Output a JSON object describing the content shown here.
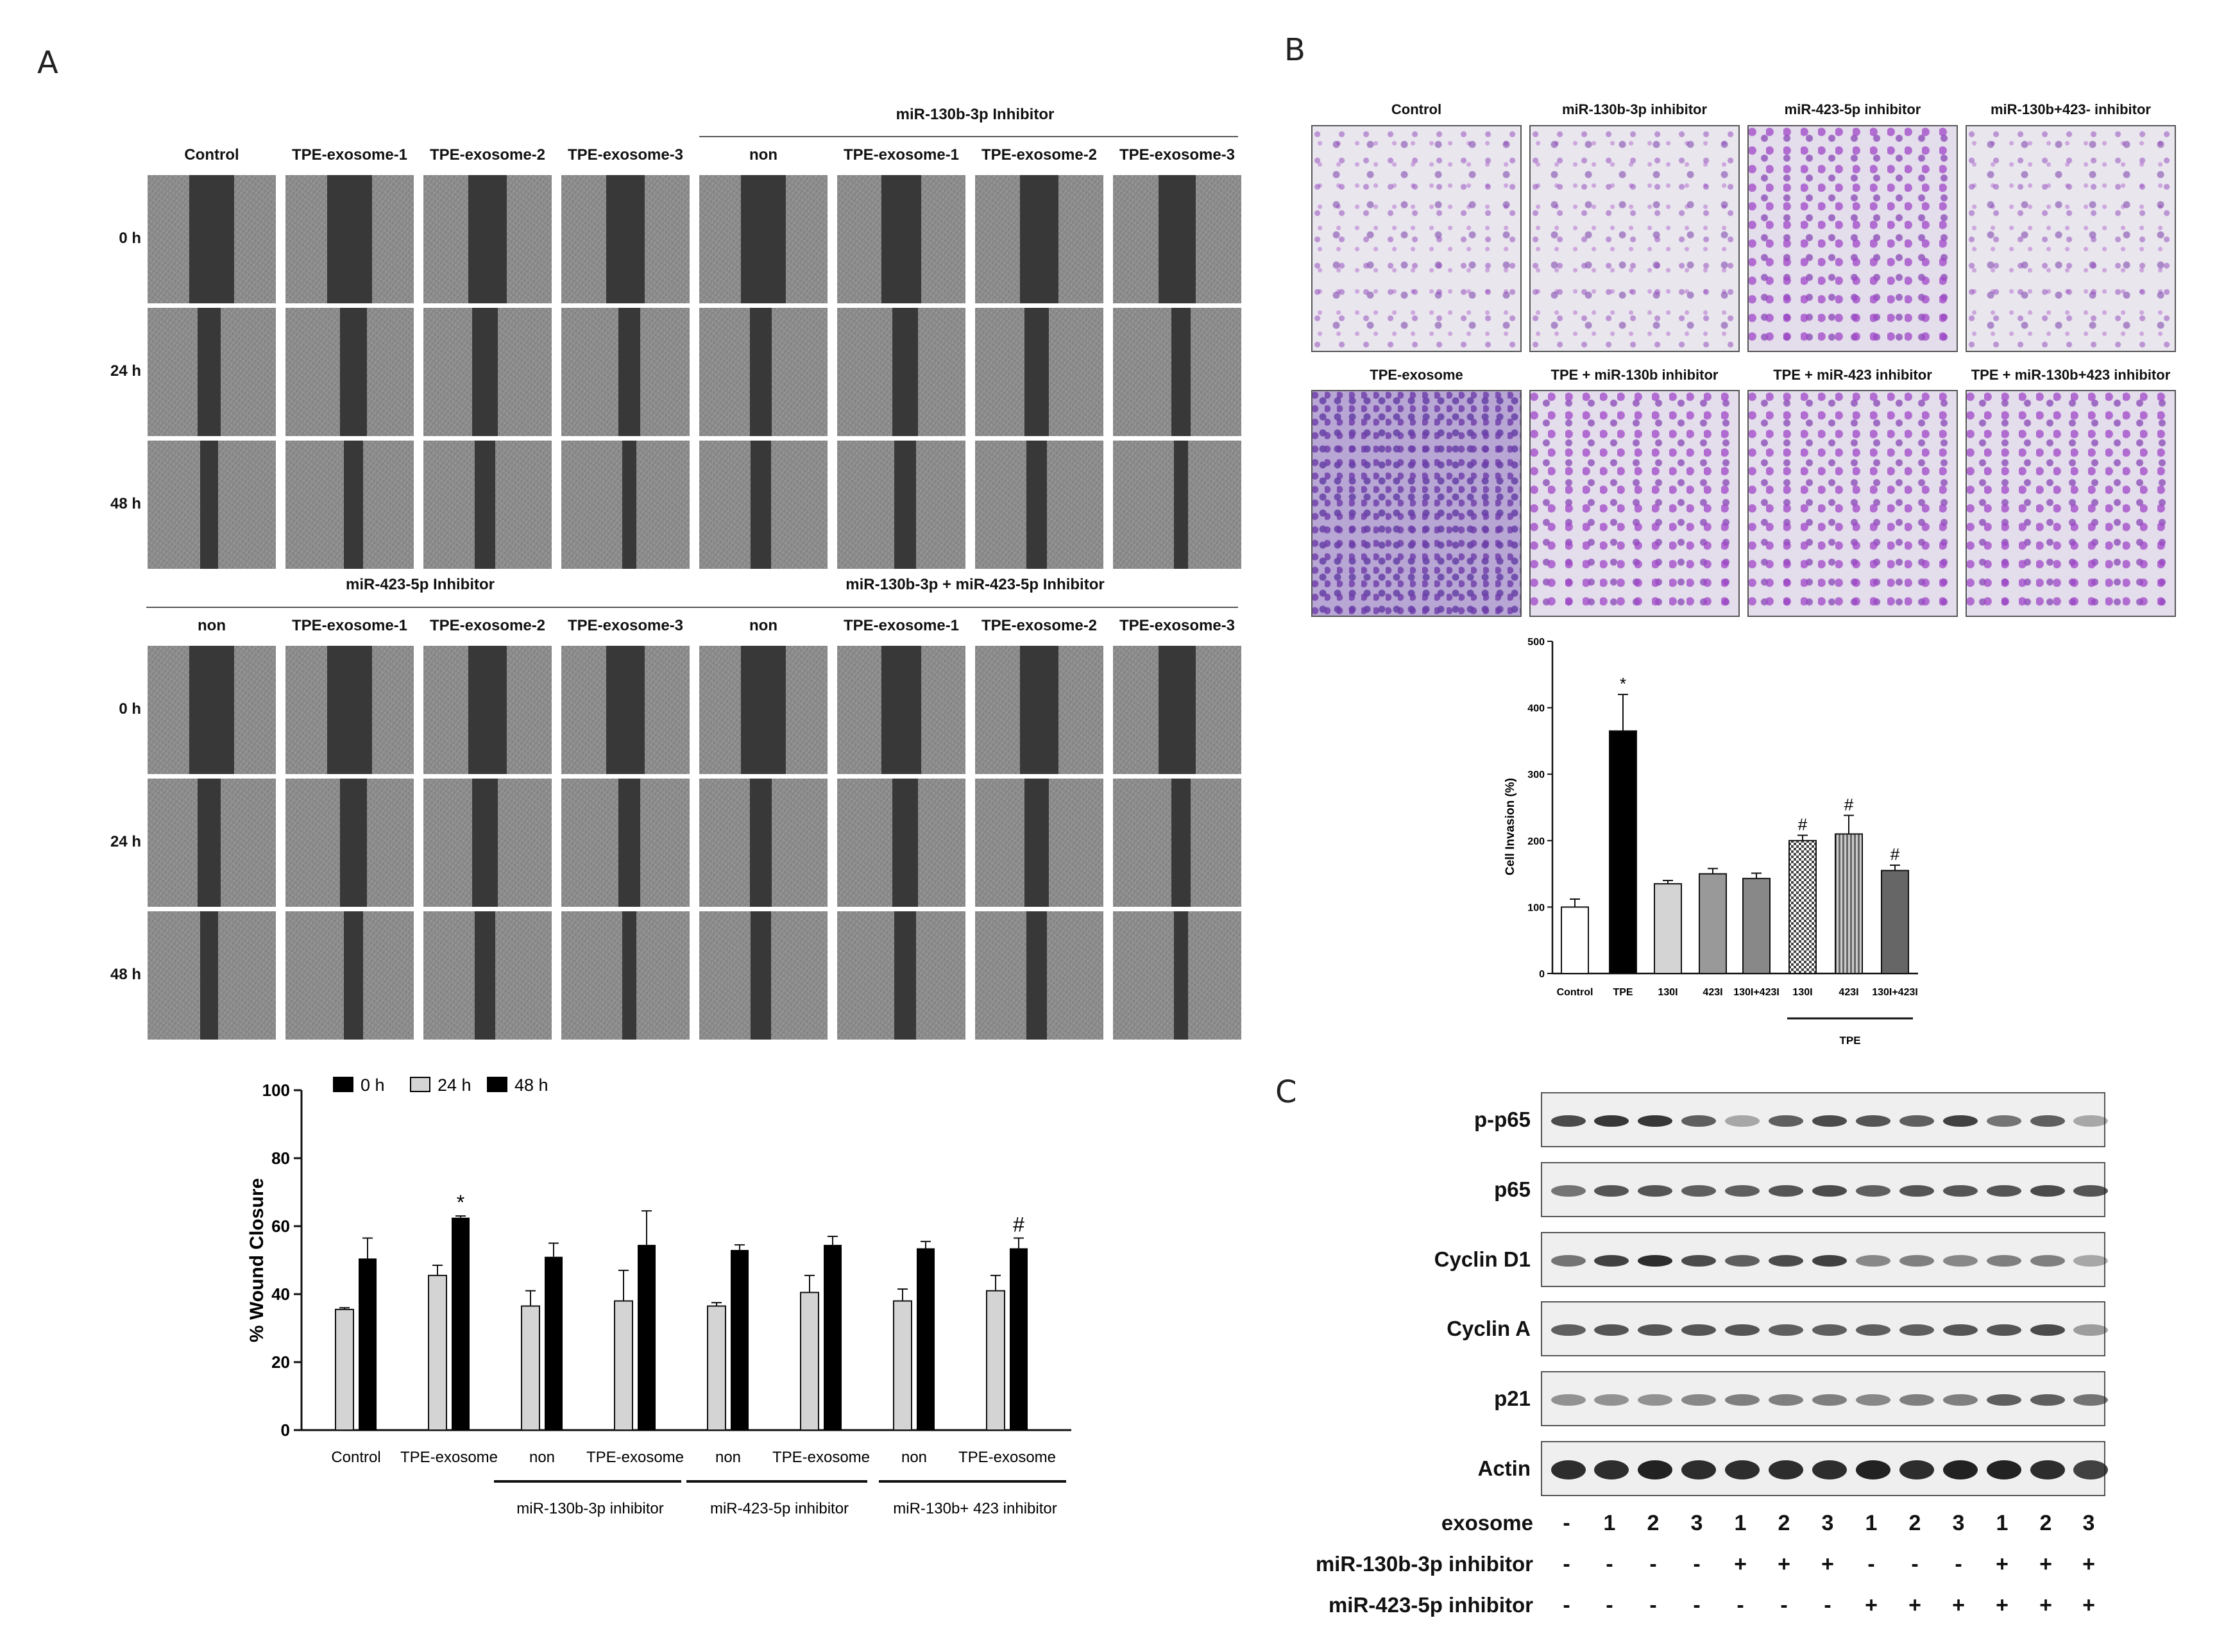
{
  "panels": {
    "a": "A",
    "b": "B",
    "c": "C"
  },
  "wound": {
    "group_titles": {
      "mir130": "miR-130b-3p Inhibitor",
      "mir423": "miR-423-5p Inhibitor",
      "combo": "miR-130b-3p + miR-423-5p Inhibitor"
    },
    "top_columns": [
      "Control",
      "TPE-exosome-1",
      "TPE-exosome-2",
      "TPE-exosome-3",
      "non",
      "TPE-exosome-1",
      "TPE-exosome-2",
      "TPE-exosome-3"
    ],
    "bottom_columns": [
      "non",
      "TPE-exosome-1",
      "TPE-exosome-2",
      "TPE-exosome-3",
      "non",
      "TPE-exosome-1",
      "TPE-exosome-2",
      "TPE-exosome-3"
    ],
    "rows": [
      "0 h",
      "24 h",
      "48 h"
    ]
  },
  "invasion_images": {
    "row1": [
      "Control",
      "miR-130b-3p inhibitor",
      "miR-423-5p inhibitor",
      "miR-130b+423- inhibitor"
    ],
    "row2": [
      "TPE-exosome",
      "TPE + miR-130b inhibitor",
      "TPE + miR-423 inhibitor",
      "TPE + miR-130b+423 inhibitor"
    ]
  },
  "chart_data": [
    {
      "type": "bar",
      "title": "",
      "ylabel": "% Wound Closure",
      "ylim": [
        0,
        100
      ],
      "yticks": [
        0,
        20,
        40,
        60,
        80,
        100
      ],
      "legend": [
        "0 h",
        "24 h",
        "48 h"
      ],
      "categories": [
        "Control",
        "TPE-exosome",
        "non",
        "TPE-exosome",
        "non",
        "TPE-exosome",
        "non",
        "TPE-exosome"
      ],
      "groups": [
        "miR-130b-3p inhibitor",
        "miR-423-5p inhibitor",
        "miR-130b+ 423 inhibitor"
      ],
      "series": [
        {
          "name": "24 h",
          "values": [
            35.5,
            45.5,
            36.5,
            38,
            36.5,
            40.5,
            38,
            41
          ],
          "errors": [
            0.5,
            3,
            4.5,
            9,
            1,
            5,
            3.5,
            4.5
          ]
        },
        {
          "name": "48 h",
          "values": [
            50.5,
            62.5,
            51,
            54.5,
            53,
            54.5,
            53.5,
            53.5
          ],
          "errors": [
            6,
            0.5,
            4,
            10,
            1.5,
            2.5,
            2,
            3
          ]
        }
      ],
      "marks": [
        "",
        "*",
        "",
        "",
        "",
        "",
        "",
        "#"
      ]
    },
    {
      "type": "bar",
      "title": "",
      "ylabel": "Cell Invasion (%)",
      "ylim": [
        0,
        500
      ],
      "yticks": [
        0,
        100,
        200,
        300,
        400,
        500
      ],
      "categories": [
        "Control",
        "TPE",
        "130I",
        "423I",
        "130I+423I",
        "130I",
        "423I",
        "130I+423I"
      ],
      "group_label": "TPE",
      "values": [
        100,
        365,
        135,
        150,
        143,
        200,
        210,
        155
      ],
      "errors": [
        12,
        55,
        5,
        8,
        8,
        8,
        28,
        8
      ],
      "marks": [
        "",
        "*",
        "",
        "",
        "",
        "#",
        "#",
        "#"
      ]
    }
  ],
  "blot": {
    "rows": [
      "p-p65",
      "p65",
      "Cyclin D1",
      "Cyclin A",
      "p21",
      "Actin"
    ],
    "condition_labels": [
      "exosome",
      "miR-130b-3p inhibitor",
      "miR-423-5p inhibitor"
    ],
    "exosome": [
      "-",
      "1",
      "2",
      "3",
      "1",
      "2",
      "3",
      "1",
      "2",
      "3",
      "1",
      "2",
      "3"
    ],
    "mir130": [
      "-",
      "-",
      "-",
      "-",
      "+",
      "+",
      "+",
      "-",
      "-",
      "-",
      "+",
      "+",
      "+"
    ],
    "mir423": [
      "-",
      "-",
      "-",
      "-",
      "-",
      "-",
      "-",
      "+",
      "+",
      "+",
      "+",
      "+",
      "+"
    ]
  }
}
